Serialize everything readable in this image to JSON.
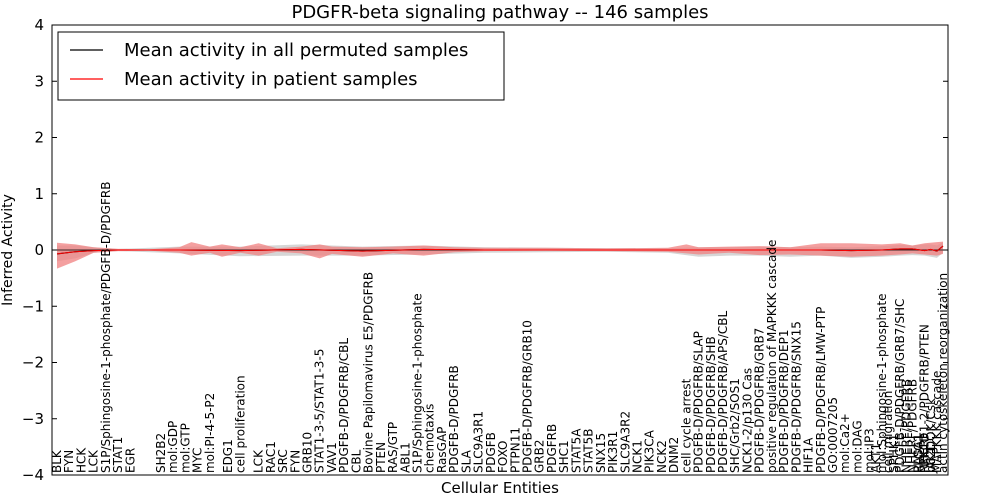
{
  "chart_data": {
    "type": "line",
    "title": "PDGFR-beta signaling pathway -- 146 samples",
    "xlabel": "Cellular Entities",
    "ylabel": "Inferred Activity",
    "ylim": [
      -4,
      4
    ],
    "yticks": [
      -4,
      -3,
      -2,
      -1,
      0,
      1,
      2,
      3,
      4
    ],
    "legend": {
      "placement": "top-left",
      "entries": [
        {
          "label": "Mean activity in all permuted samples",
          "color": "#000000"
        },
        {
          "label": "Mean activity in patient samples",
          "color": "#ff0000"
        }
      ]
    },
    "entity_count": 146,
    "entities": [
      {
        "i": 0,
        "label": "BLK"
      },
      {
        "i": 2,
        "label": "FYN"
      },
      {
        "i": 4,
        "label": "HCK"
      },
      {
        "i": 6,
        "label": "LCK"
      },
      {
        "i": 8,
        "label": "S1P/Sphingosine-1-phosphate/PDGFB-D/PDGFRB"
      },
      {
        "i": 10,
        "label": "STAT1"
      },
      {
        "i": 12,
        "label": "EGR"
      },
      {
        "i": 17,
        "label": "SH2B2"
      },
      {
        "i": 19,
        "label": "mol:GDP"
      },
      {
        "i": 21,
        "label": "mol:GTP"
      },
      {
        "i": 23,
        "label": "MYC"
      },
      {
        "i": 25,
        "label": "mol:PI-4-5-P2"
      },
      {
        "i": 28,
        "label": "EDG1"
      },
      {
        "i": 30,
        "label": "cell proliferation"
      },
      {
        "i": 33,
        "label": "LCK"
      },
      {
        "i": 35,
        "label": "RAC1"
      },
      {
        "i": 37,
        "label": "SRC"
      },
      {
        "i": 39,
        "label": "FYN"
      },
      {
        "i": 41,
        "label": "GRB10"
      },
      {
        "i": 43,
        "label": "STAT1-3-5/STAT1-3-5"
      },
      {
        "i": 45,
        "label": "VAV1"
      },
      {
        "i": 47,
        "label": "PDGFB-D/PDGFRB/CBL"
      },
      {
        "i": 49,
        "label": "CBL"
      },
      {
        "i": 51,
        "label": "Bovine Papilomavirus E5/PDGFRB"
      },
      {
        "i": 53,
        "label": "PTEN"
      },
      {
        "i": 55,
        "label": "RAS/GTP"
      },
      {
        "i": 57,
        "label": "ABL1"
      },
      {
        "i": 59,
        "label": "S1P/Sphingosine-1-phosphate"
      },
      {
        "i": 61,
        "label": "chemotaxis"
      },
      {
        "i": 63,
        "label": "RasGAP"
      },
      {
        "i": 65,
        "label": "PDGFB-D/PDGFRB"
      },
      {
        "i": 67,
        "label": "SLA"
      },
      {
        "i": 69,
        "label": "SLC9A3R1"
      },
      {
        "i": 71,
        "label": "PDGFB"
      },
      {
        "i": 73,
        "label": "FOXO"
      },
      {
        "i": 75,
        "label": "PTPN11"
      },
      {
        "i": 77,
        "label": "PDGFB-D/PDGFRB/GRB10"
      },
      {
        "i": 79,
        "label": "GRB2"
      },
      {
        "i": 81,
        "label": "PDGFRB"
      },
      {
        "i": 83,
        "label": "SHC1"
      },
      {
        "i": 85,
        "label": "STAT5A"
      },
      {
        "i": 87,
        "label": "STAT5B"
      },
      {
        "i": 89,
        "label": "SNX15"
      },
      {
        "i": 91,
        "label": "PIK3R1"
      },
      {
        "i": 93,
        "label": "SLC9A3R2"
      },
      {
        "i": 95,
        "label": "NCK1"
      },
      {
        "i": 97,
        "label": "PIK3CA"
      },
      {
        "i": 99,
        "label": "NCK2"
      },
      {
        "i": 101,
        "label": "DNM2"
      },
      {
        "i": 103,
        "label": "cell cycle arrest"
      },
      {
        "i": 105,
        "label": "PDGFB-D/PDGFRB/SLAP"
      },
      {
        "i": 107,
        "label": "PDGFB-D/PDGFRB/SHB"
      },
      {
        "i": 109,
        "label": "PDGFB-D/PDGFRB/APS/CBL"
      },
      {
        "i": 111,
        "label": "SHC/Grb2/SOS1"
      },
      {
        "i": 113,
        "label": "NCK1-2/p130 Cas"
      },
      {
        "i": 115,
        "label": "PDGFB-D/PDGFRB/GRB7"
      },
      {
        "i": 117,
        "label": "positive regulation of MAPKKK cascade"
      },
      {
        "i": 119,
        "label": "PDGFB-D/PDGFRB/DEP1"
      },
      {
        "i": 121,
        "label": "PDGFB-D/PDGFRB/SNX15"
      },
      {
        "i": 123,
        "label": "HIF1A"
      },
      {
        "i": 125,
        "label": "PDGFB-D/PDGFRB/LMW-PTP"
      },
      {
        "i": 127,
        "label": "GO:0007205"
      },
      {
        "i": 129,
        "label": "mol:Ca2+"
      },
      {
        "i": 131,
        "label": "mol:DAG"
      },
      {
        "i": 133,
        "label": "mol:IP3"
      },
      {
        "i": 134,
        "label": "AKT1"
      },
      {
        "i": 135,
        "label": "mol:Sphingosine-1-phosphate"
      },
      {
        "i": 136,
        "label": "cell migration"
      },
      {
        "i": 137,
        "label": "SPHK1"
      },
      {
        "i": 138,
        "label": "PDGFB-D/PDGFRB/GRB7/SHC"
      },
      {
        "i": 139,
        "label": "NHERF/PDGFRB"
      },
      {
        "i": 140,
        "label": "NHERF/PDGFRB"
      },
      {
        "i": 141,
        "label": "RASA1"
      },
      {
        "i": 141,
        "label": "PLCG1"
      },
      {
        "i": 142,
        "label": "PRKCD"
      },
      {
        "i": 142,
        "label": "NHERF1-2/PDGFRB/PTEN"
      },
      {
        "i": 143,
        "label": "p62DOK/Csk"
      },
      {
        "i": 143,
        "label": "JAK1"
      },
      {
        "i": 144,
        "label": "MAPKKK cascade"
      },
      {
        "i": 145,
        "label": "actin cytoskeleton reorganization"
      }
    ],
    "series": [
      {
        "name": "Mean activity in all permuted samples",
        "color": "#000000",
        "points": [
          [
            0,
            -0.07
          ],
          [
            3,
            -0.03
          ],
          [
            6,
            -0.01
          ],
          [
            10,
            0
          ],
          [
            20,
            0
          ],
          [
            30,
            -0.01
          ],
          [
            40,
            0.01
          ],
          [
            50,
            -0.02
          ],
          [
            60,
            0.01
          ],
          [
            70,
            0
          ],
          [
            80,
            0
          ],
          [
            90,
            0
          ],
          [
            100,
            0
          ],
          [
            105,
            0
          ],
          [
            110,
            0
          ],
          [
            115,
            0
          ],
          [
            120,
            0
          ],
          [
            125,
            0
          ],
          [
            130,
            -0.01
          ],
          [
            135,
            0
          ],
          [
            138,
            0.02
          ],
          [
            140,
            0.02
          ],
          [
            142,
            -0.01
          ],
          [
            143,
            0.01
          ],
          [
            144,
            -0.02
          ],
          [
            145,
            0.07
          ]
        ]
      },
      {
        "name": "Mean activity in patient samples",
        "color": "#ff0000",
        "points": [
          [
            0,
            -0.07
          ],
          [
            3,
            -0.03
          ],
          [
            6,
            -0.01
          ],
          [
            10,
            0
          ],
          [
            20,
            0
          ],
          [
            30,
            -0.01
          ],
          [
            40,
            0.01
          ],
          [
            50,
            -0.02
          ],
          [
            60,
            0.01
          ],
          [
            70,
            0
          ],
          [
            80,
            0
          ],
          [
            90,
            0
          ],
          [
            100,
            0
          ],
          [
            105,
            0
          ],
          [
            110,
            0
          ],
          [
            115,
            0
          ],
          [
            120,
            0
          ],
          [
            125,
            0
          ],
          [
            130,
            -0.01
          ],
          [
            135,
            0
          ],
          [
            138,
            0.02
          ],
          [
            140,
            0.02
          ],
          [
            142,
            -0.01
          ],
          [
            143,
            0.01
          ],
          [
            144,
            -0.02
          ],
          [
            145,
            0.07
          ]
        ]
      }
    ],
    "bands": [
      {
        "name": "permuted spread",
        "color": "#bbbbbb",
        "points": [
          [
            0,
            -0.2,
            0.08
          ],
          [
            3,
            -0.15,
            0.08
          ],
          [
            6,
            -0.05,
            0.05
          ],
          [
            10,
            -0.02,
            0.02
          ],
          [
            20,
            -0.06,
            0.06
          ],
          [
            30,
            -0.11,
            0.06
          ],
          [
            40,
            -0.1,
            0.1
          ],
          [
            50,
            -0.1,
            0.06
          ],
          [
            60,
            -0.08,
            0.08
          ],
          [
            70,
            -0.05,
            0.05
          ],
          [
            80,
            -0.04,
            0.04
          ],
          [
            90,
            -0.03,
            0.03
          ],
          [
            100,
            -0.05,
            0.03
          ],
          [
            105,
            -0.12,
            0.05
          ],
          [
            110,
            -0.1,
            0.05
          ],
          [
            115,
            -0.1,
            0.06
          ],
          [
            120,
            -0.12,
            0.05
          ],
          [
            125,
            -0.1,
            0.06
          ],
          [
            130,
            -0.14,
            0.05
          ],
          [
            135,
            -0.12,
            0.07
          ],
          [
            138,
            -0.1,
            0.09
          ],
          [
            140,
            -0.09,
            0.08
          ],
          [
            142,
            -0.1,
            0.1
          ],
          [
            143,
            -0.12,
            0.1
          ],
          [
            144,
            -0.14,
            0.08
          ],
          [
            145,
            -0.05,
            0.14
          ]
        ]
      },
      {
        "name": "patient spread",
        "color": "#f08080",
        "points": [
          [
            0,
            -0.33,
            0.13
          ],
          [
            3,
            -0.2,
            0.1
          ],
          [
            6,
            -0.05,
            0.05
          ],
          [
            10,
            -0.02,
            0.02
          ],
          [
            15,
            -0.01,
            0.01
          ],
          [
            20,
            -0.05,
            0.05
          ],
          [
            22,
            -0.1,
            0.14
          ],
          [
            25,
            -0.05,
            0.06
          ],
          [
            27,
            -0.12,
            0.1
          ],
          [
            30,
            -0.05,
            0.05
          ],
          [
            33,
            -0.1,
            0.12
          ],
          [
            36,
            -0.03,
            0.03
          ],
          [
            40,
            -0.06,
            0.06
          ],
          [
            43,
            -0.15,
            0.1
          ],
          [
            45,
            -0.07,
            0.06
          ],
          [
            50,
            -0.12,
            0.05
          ],
          [
            55,
            -0.06,
            0.06
          ],
          [
            60,
            -0.1,
            0.08
          ],
          [
            65,
            -0.04,
            0.05
          ],
          [
            70,
            -0.02,
            0.04
          ],
          [
            80,
            -0.01,
            0.04
          ],
          [
            90,
            -0.02,
            0.03
          ],
          [
            100,
            -0.03,
            0.04
          ],
          [
            103,
            -0.06,
            0.1
          ],
          [
            105,
            -0.08,
            0.05
          ],
          [
            110,
            -0.05,
            0.06
          ],
          [
            115,
            -0.09,
            0.07
          ],
          [
            120,
            -0.08,
            0.05
          ],
          [
            125,
            -0.1,
            0.12
          ],
          [
            130,
            -0.12,
            0.12
          ],
          [
            135,
            -0.1,
            0.1
          ],
          [
            138,
            -0.08,
            0.12
          ],
          [
            140,
            -0.06,
            0.08
          ],
          [
            142,
            -0.08,
            0.12
          ],
          [
            144,
            -0.1,
            0.14
          ],
          [
            145,
            -0.07,
            0.15
          ]
        ]
      }
    ]
  }
}
